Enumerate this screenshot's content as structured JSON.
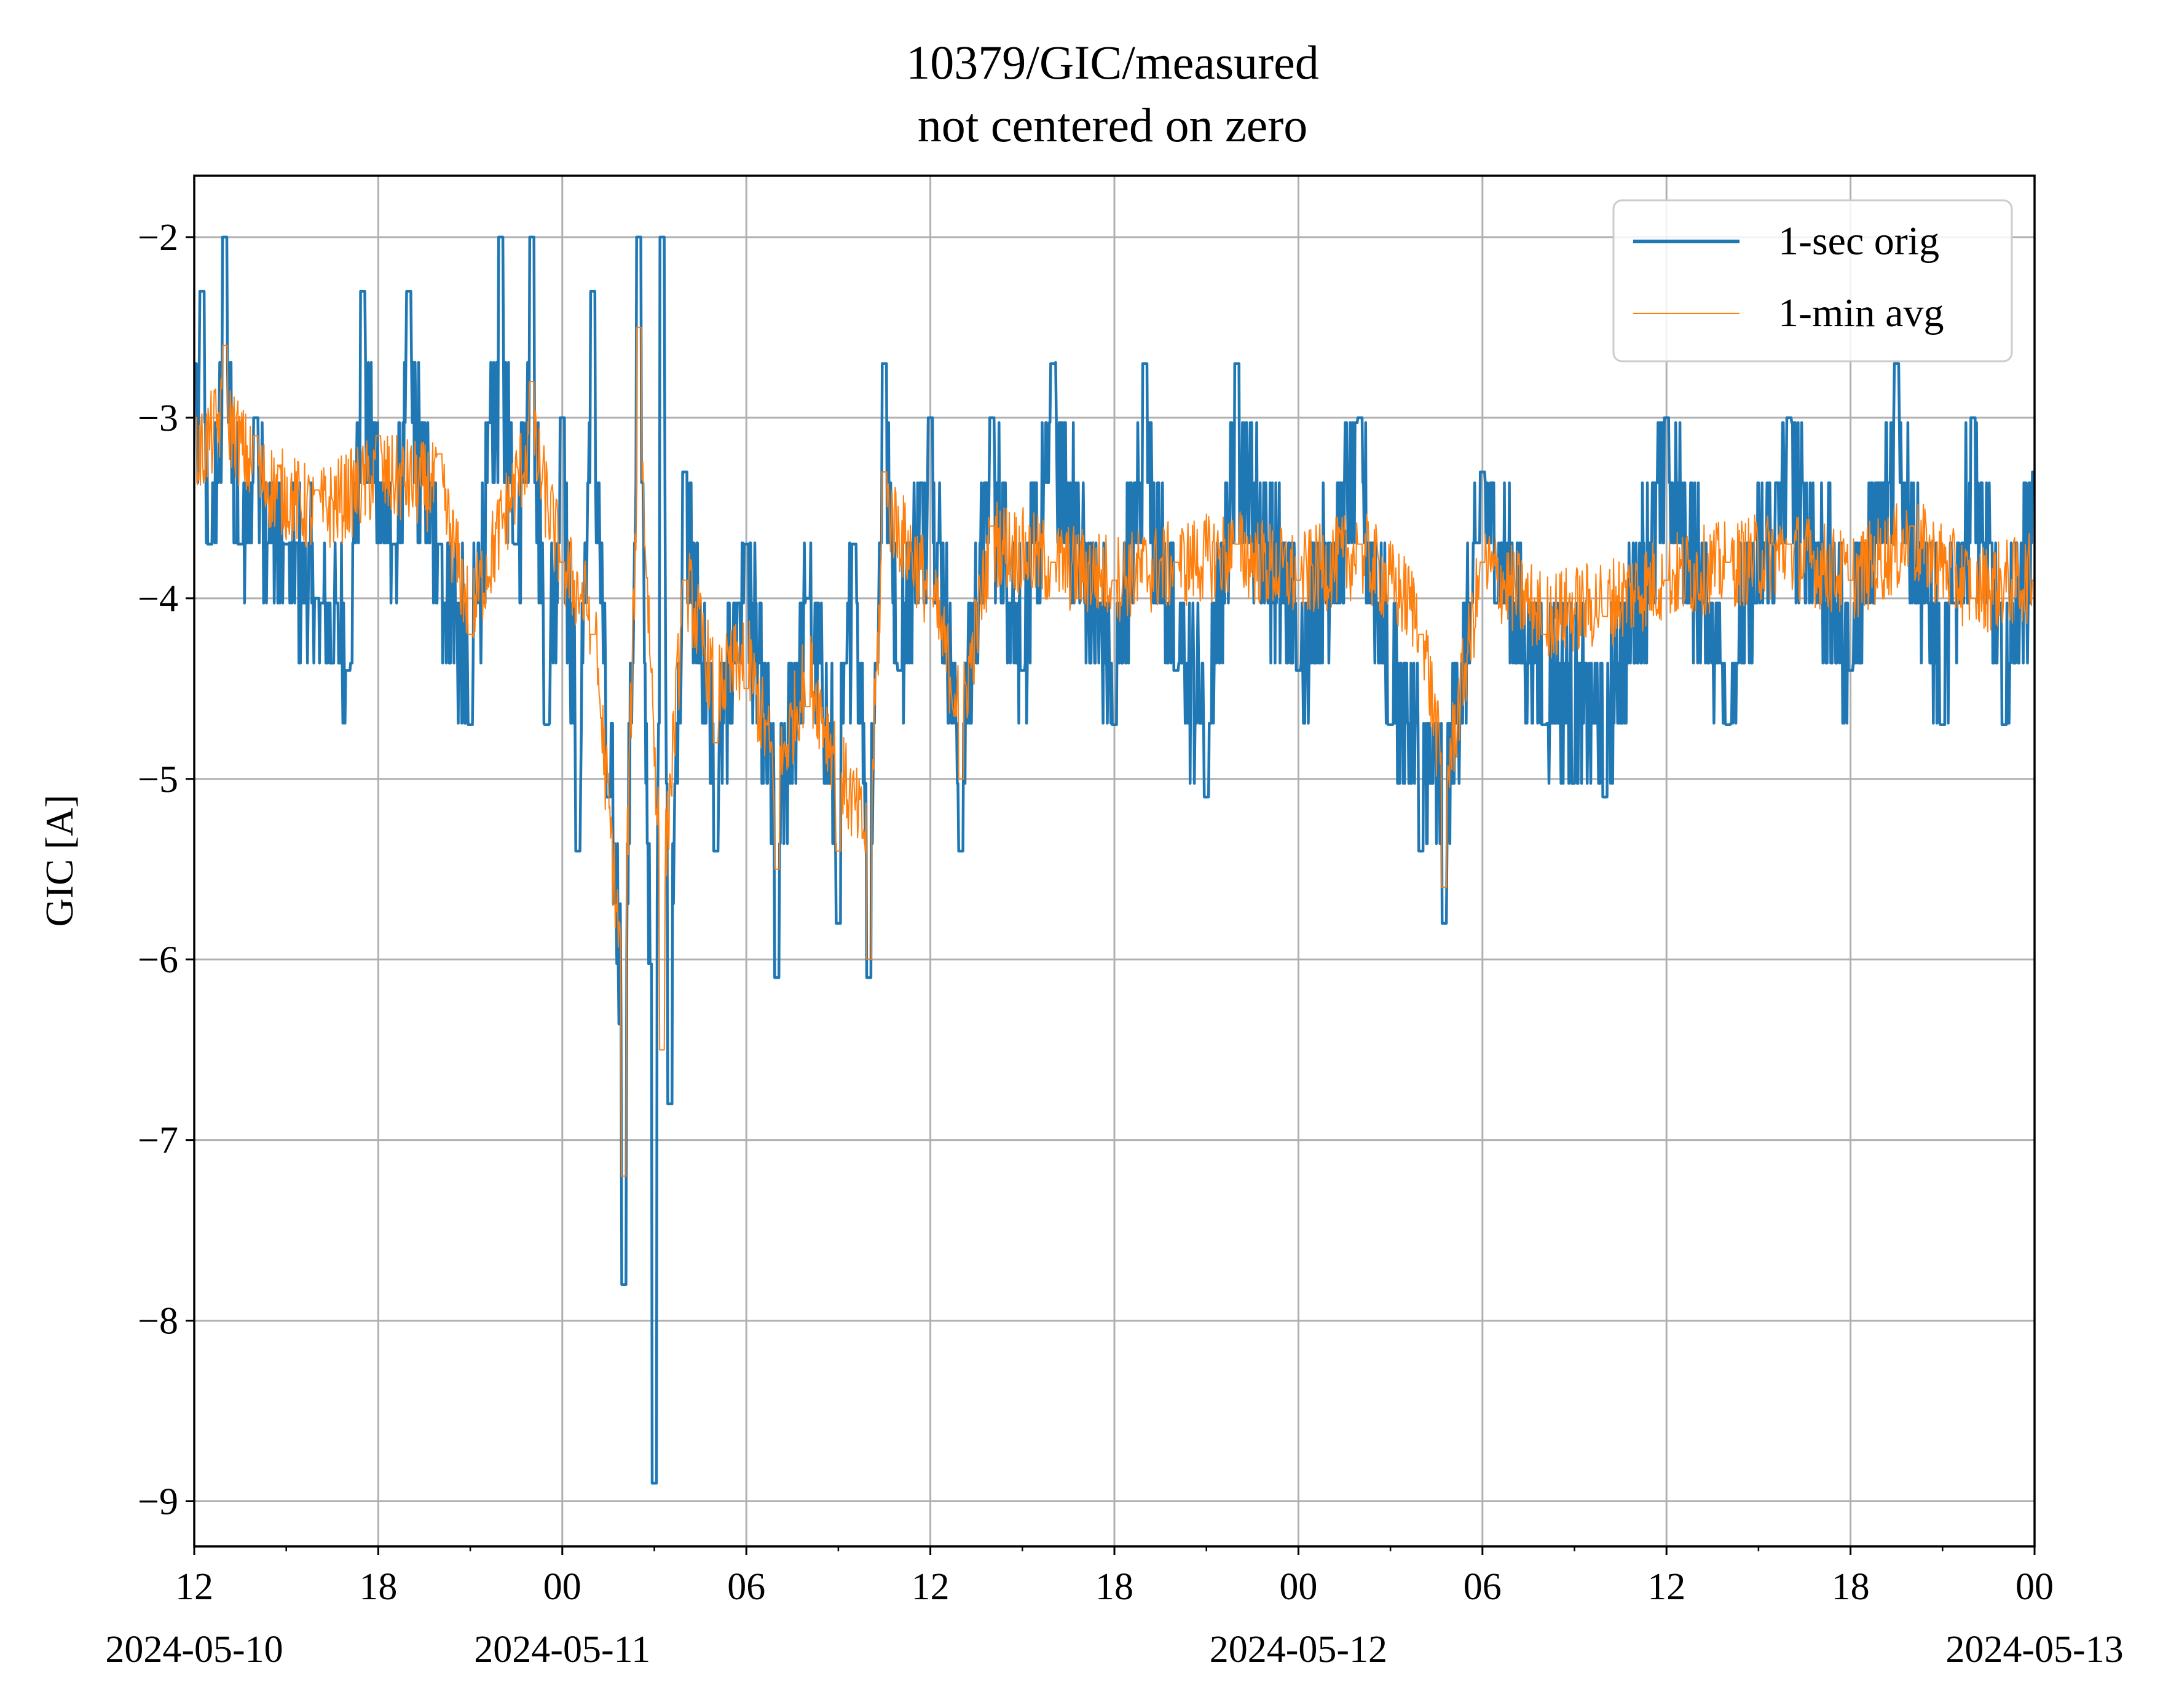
{
  "chart_data": {
    "type": "line",
    "title": "10379/GIC/measured",
    "subtitle": "not centered on zero",
    "xlabel": "",
    "ylabel": "GIC [A]",
    "x_range": [
      "2024-05-10 12:00",
      "2024-05-13 00:00"
    ],
    "ylim": [
      -9.25,
      -1.66
    ],
    "y_ticks": [
      -2,
      -3,
      -4,
      -5,
      -6,
      -7,
      -8,
      -9
    ],
    "y_tick_labels": [
      "−2",
      "−3",
      "−4",
      "−5",
      "−6",
      "−7",
      "−8",
      "−9"
    ],
    "x_ticks": [
      {
        "time": "2024-05-10 12:00",
        "label": "12",
        "date_label": "2024-05-10"
      },
      {
        "time": "2024-05-10 18:00",
        "label": "18",
        "date_label": ""
      },
      {
        "time": "2024-05-11 00:00",
        "label": "00",
        "date_label": "2024-05-11"
      },
      {
        "time": "2024-05-11 06:00",
        "label": "06",
        "date_label": ""
      },
      {
        "time": "2024-05-11 12:00",
        "label": "12",
        "date_label": ""
      },
      {
        "time": "2024-05-11 18:00",
        "label": "18",
        "date_label": ""
      },
      {
        "time": "2024-05-12 00:00",
        "label": "00",
        "date_label": "2024-05-12"
      },
      {
        "time": "2024-05-12 06:00",
        "label": "06",
        "date_label": ""
      },
      {
        "time": "2024-05-12 12:00",
        "label": "12",
        "date_label": ""
      },
      {
        "time": "2024-05-12 18:00",
        "label": "18",
        "date_label": ""
      },
      {
        "time": "2024-05-13 00:00",
        "label": "00",
        "date_label": "2024-05-13"
      }
    ],
    "minor_x_ticks": [
      "2024-05-10 15:00",
      "2024-05-10 21:00",
      "2024-05-11 03:00",
      "2024-05-11 09:00",
      "2024-05-11 15:00",
      "2024-05-11 21:00",
      "2024-05-12 03:00",
      "2024-05-12 09:00",
      "2024-05-12 15:00",
      "2024-05-12 21:00"
    ],
    "grid": true,
    "legend_position": "top-right",
    "series": [
      {
        "name": "1-sec orig",
        "color": "#1f77b4",
        "points": [
          [
            "2024-05-10 12:00",
            -2.7
          ],
          [
            "2024-05-10 12:15",
            -2.3
          ],
          [
            "2024-05-10 12:30",
            -3.7
          ],
          [
            "2024-05-10 13:00",
            -2.0
          ],
          [
            "2024-05-10 13:30",
            -3.7
          ],
          [
            "2024-05-10 14:00",
            -3.0
          ],
          [
            "2024-05-10 15:00",
            -3.7
          ],
          [
            "2024-05-10 16:00",
            -4.0
          ],
          [
            "2024-05-10 17:00",
            -4.4
          ],
          [
            "2024-05-10 17:30",
            -2.3
          ],
          [
            "2024-05-10 18:30",
            -3.7
          ],
          [
            "2024-05-10 19:00",
            -2.3
          ],
          [
            "2024-05-10 20:00",
            -3.7
          ],
          [
            "2024-05-10 21:00",
            -4.7
          ],
          [
            "2024-05-10 22:00",
            -2.0
          ],
          [
            "2024-05-10 22:30",
            -3.7
          ],
          [
            "2024-05-10 23:00",
            -2.0
          ],
          [
            "2024-05-10 23:30",
            -4.7
          ],
          [
            "2024-05-11 00:00",
            -3.0
          ],
          [
            "2024-05-11 00:30",
            -5.4
          ],
          [
            "2024-05-11 01:00",
            -2.3
          ],
          [
            "2024-05-11 01:30",
            -5.1
          ],
          [
            "2024-05-11 02:00",
            -7.8
          ],
          [
            "2024-05-11 02:30",
            -2.0
          ],
          [
            "2024-05-11 03:00",
            -8.9
          ],
          [
            "2024-05-11 03:15",
            -2.0
          ],
          [
            "2024-05-11 03:30",
            -6.8
          ],
          [
            "2024-05-11 04:00",
            -3.3
          ],
          [
            "2024-05-11 05:00",
            -5.4
          ],
          [
            "2024-05-11 06:00",
            -3.7
          ],
          [
            "2024-05-11 07:00",
            -6.1
          ],
          [
            "2024-05-11 08:00",
            -4.0
          ],
          [
            "2024-05-11 09:00",
            -5.8
          ],
          [
            "2024-05-11 09:30",
            -3.7
          ],
          [
            "2024-05-11 10:00",
            -6.1
          ],
          [
            "2024-05-11 10:30",
            -2.7
          ],
          [
            "2024-05-11 11:00",
            -4.4
          ],
          [
            "2024-05-11 12:00",
            -3.0
          ],
          [
            "2024-05-11 13:00",
            -5.4
          ],
          [
            "2024-05-11 14:00",
            -3.0
          ],
          [
            "2024-05-11 15:00",
            -4.4
          ],
          [
            "2024-05-11 16:00",
            -2.7
          ],
          [
            "2024-05-11 18:00",
            -4.7
          ],
          [
            "2024-05-11 19:00",
            -2.7
          ],
          [
            "2024-05-11 20:00",
            -4.4
          ],
          [
            "2024-05-11 21:00",
            -5.1
          ],
          [
            "2024-05-11 22:00",
            -2.7
          ],
          [
            "2024-05-12 00:00",
            -4.4
          ],
          [
            "2024-05-12 02:00",
            -3.0
          ],
          [
            "2024-05-12 03:00",
            -4.7
          ],
          [
            "2024-05-12 04:00",
            -5.4
          ],
          [
            "2024-05-12 04:45",
            -5.8
          ],
          [
            "2024-05-12 06:00",
            -3.3
          ],
          [
            "2024-05-12 08:00",
            -4.7
          ],
          [
            "2024-05-12 10:00",
            -5.1
          ],
          [
            "2024-05-12 12:00",
            -3.0
          ],
          [
            "2024-05-12 14:00",
            -4.7
          ],
          [
            "2024-05-12 16:00",
            -3.0
          ],
          [
            "2024-05-12 18:00",
            -4.4
          ],
          [
            "2024-05-12 19:30",
            -2.7
          ],
          [
            "2024-05-12 21:00",
            -4.7
          ],
          [
            "2024-05-12 22:00",
            -3.0
          ],
          [
            "2024-05-12 23:00",
            -4.7
          ],
          [
            "2024-05-13 00:00",
            -3.3
          ]
        ]
      },
      {
        "name": "1-min avg",
        "color": "#ff7f0e",
        "points": [
          [
            "2024-05-10 12:00",
            -3.0
          ],
          [
            "2024-05-10 13:00",
            -2.6
          ],
          [
            "2024-05-10 14:00",
            -3.1
          ],
          [
            "2024-05-10 16:00",
            -3.4
          ],
          [
            "2024-05-10 18:00",
            -3.1
          ],
          [
            "2024-05-10 20:00",
            -3.2
          ],
          [
            "2024-05-10 21:00",
            -4.2
          ],
          [
            "2024-05-10 23:00",
            -2.8
          ],
          [
            "2024-05-11 00:00",
            -3.8
          ],
          [
            "2024-05-11 01:00",
            -4.2
          ],
          [
            "2024-05-11 02:00",
            -7.2
          ],
          [
            "2024-05-11 02:30",
            -2.5
          ],
          [
            "2024-05-11 03:15",
            -6.5
          ],
          [
            "2024-05-11 04:00",
            -3.9
          ],
          [
            "2024-05-11 05:00",
            -4.8
          ],
          [
            "2024-05-11 06:00",
            -4.5
          ],
          [
            "2024-05-11 07:00",
            -5.5
          ],
          [
            "2024-05-11 08:00",
            -4.6
          ],
          [
            "2024-05-11 09:00",
            -5.4
          ],
          [
            "2024-05-11 10:00",
            -6.0
          ],
          [
            "2024-05-11 10:30",
            -3.3
          ],
          [
            "2024-05-11 12:00",
            -4.0
          ],
          [
            "2024-05-11 13:00",
            -5.0
          ],
          [
            "2024-05-11 14:00",
            -3.6
          ],
          [
            "2024-05-11 16:00",
            -3.8
          ],
          [
            "2024-05-11 18:00",
            -3.9
          ],
          [
            "2024-05-11 20:00",
            -3.8
          ],
          [
            "2024-05-11 22:00",
            -3.7
          ],
          [
            "2024-05-12 00:00",
            -3.9
          ],
          [
            "2024-05-12 02:00",
            -3.7
          ],
          [
            "2024-05-12 04:00",
            -4.2
          ],
          [
            "2024-05-12 04:45",
            -5.6
          ],
          [
            "2024-05-12 06:00",
            -3.8
          ],
          [
            "2024-05-12 08:00",
            -4.2
          ],
          [
            "2024-05-12 10:00",
            -4.1
          ],
          [
            "2024-05-12 12:00",
            -3.9
          ],
          [
            "2024-05-12 14:00",
            -3.8
          ],
          [
            "2024-05-12 16:00",
            -3.7
          ],
          [
            "2024-05-12 18:00",
            -3.9
          ],
          [
            "2024-05-12 20:00",
            -3.6
          ],
          [
            "2024-05-12 22:00",
            -4.0
          ],
          [
            "2024-05-13 00:00",
            -3.9
          ]
        ]
      }
    ]
  }
}
